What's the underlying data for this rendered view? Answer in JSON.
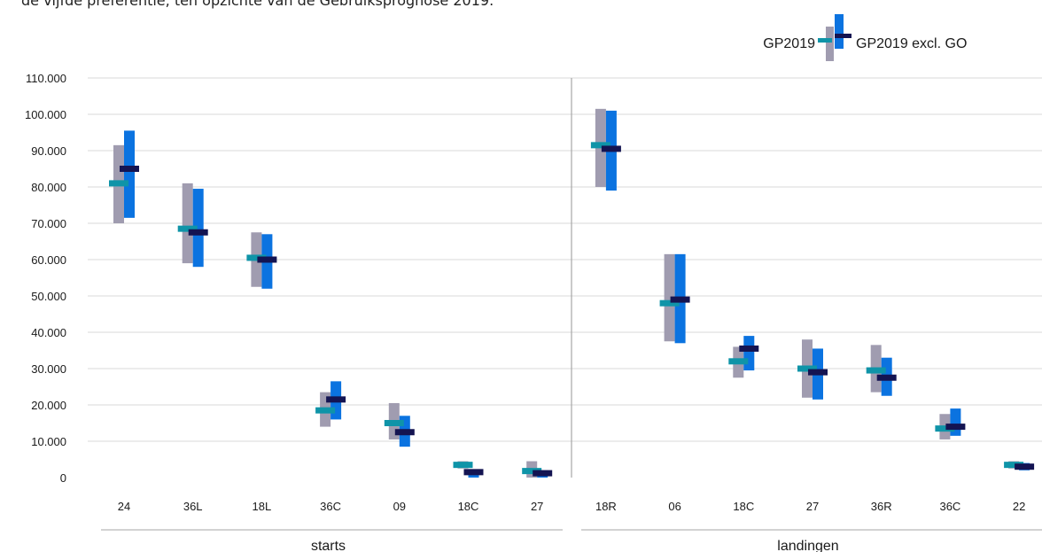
{
  "caption": "de vijfde preferentie, ten opzichte van de Gebruiksprognose 2019.",
  "chart_data": {
    "type": "range-bar",
    "ylim": [
      0,
      110000
    ],
    "yticks": [
      0,
      10000,
      20000,
      30000,
      40000,
      50000,
      60000,
      70000,
      80000,
      90000,
      100000,
      110000
    ],
    "ytick_labels": [
      "0",
      "10.000",
      "20.000",
      "30.000",
      "40.000",
      "50.000",
      "60.000",
      "70.000",
      "80.000",
      "90.000",
      "100.000",
      "110.000"
    ],
    "legend": {
      "placement": "top-right",
      "series1_label": "GP2019",
      "series2_label": "GP2019 excl. GO"
    },
    "colors": {
      "s1_range": "#a09cb0",
      "s1_mean": "#0f94a8",
      "s2_range": "#0b73e0",
      "s2_mean": "#141452",
      "grid": "#d9d9d9",
      "divider": "#a6a6a6"
    },
    "groups": [
      {
        "label": "starts",
        "categories": [
          "24",
          "36L",
          "18L",
          "36C",
          "09",
          "18C",
          "27"
        ]
      },
      {
        "label": "landingen",
        "categories": [
          "18R",
          "06",
          "18C",
          "27",
          "36R",
          "36C",
          "22"
        ]
      }
    ],
    "series": [
      {
        "name": "GP2019",
        "min": [
          70000,
          59000,
          52500,
          14000,
          10500,
          2500,
          0,
          80000,
          37500,
          27500,
          22000,
          23500,
          10500,
          2500
        ],
        "mean": [
          81000,
          68500,
          60500,
          18500,
          15000,
          3500,
          1800,
          91500,
          48000,
          32000,
          30000,
          29500,
          13500,
          3500
        ],
        "max": [
          91500,
          81000,
          67500,
          23500,
          20500,
          4500,
          4500,
          101500,
          61500,
          36000,
          38000,
          36500,
          17500,
          4500
        ]
      },
      {
        "name": "GP2019 excl. GO",
        "min": [
          71500,
          58000,
          52000,
          16000,
          8500,
          0,
          0,
          79000,
          37000,
          29500,
          21500,
          22500,
          11500,
          2000
        ],
        "mean": [
          85000,
          67500,
          60000,
          21500,
          12500,
          1500,
          1200,
          90500,
          49000,
          35500,
          29000,
          27500,
          14000,
          3000
        ],
        "max": [
          95500,
          79500,
          67000,
          26500,
          17000,
          2000,
          2000,
          101000,
          61500,
          39000,
          35500,
          33000,
          19000,
          4000
        ]
      }
    ]
  }
}
